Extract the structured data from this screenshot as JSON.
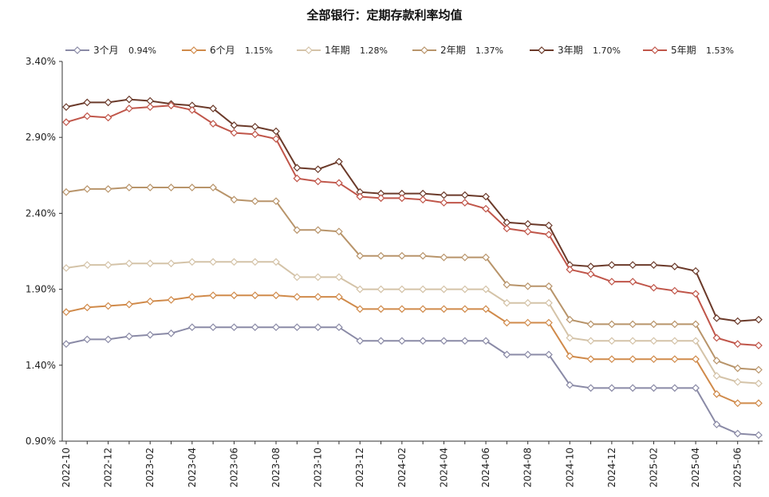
{
  "chart_data": {
    "type": "line",
    "title": "全部银行：定期存款利率均值",
    "xlabel": "",
    "ylabel": "",
    "ylim": [
      0.9,
      3.4
    ],
    "y_ticks": [
      "0.90%",
      "1.40%",
      "1.90%",
      "2.40%",
      "2.90%",
      "3.40%"
    ],
    "y_tick_values": [
      0.9,
      1.4,
      1.9,
      2.4,
      2.9,
      3.4
    ],
    "grid": false,
    "legend_position": "top",
    "x_tick_labels": [
      "2022-10",
      "2022-12",
      "2023-02",
      "2023-04",
      "2023-06",
      "2023-08",
      "2023-10",
      "2023-12",
      "2024-02",
      "2024-04",
      "2024-06",
      "2024-08",
      "2024-10",
      "2024-12",
      "2025-02",
      "2025-04",
      "2025-06"
    ],
    "categories": [
      "2022-10",
      "2022-11",
      "2022-12",
      "2023-01",
      "2023-02",
      "2023-03",
      "2023-04",
      "2023-05",
      "2023-06",
      "2023-07",
      "2023-08",
      "2023-09",
      "2023-10",
      "2023-11",
      "2023-12",
      "2024-01",
      "2024-02",
      "2024-03",
      "2024-04",
      "2024-05",
      "2024-06",
      "2024-07",
      "2024-08",
      "2024-09",
      "2024-10",
      "2024-11",
      "2024-12",
      "2025-01",
      "2025-02",
      "2025-03",
      "2025-04",
      "2025-05",
      "2025-06",
      "2025-07"
    ],
    "series": [
      {
        "name": "3个月",
        "latest": "0.94%",
        "color": "#8a8aa6",
        "values": [
          1.54,
          1.57,
          1.57,
          1.59,
          1.6,
          1.61,
          1.65,
          1.65,
          1.65,
          1.65,
          1.65,
          1.65,
          1.65,
          1.65,
          1.56,
          1.56,
          1.56,
          1.56,
          1.56,
          1.56,
          1.56,
          1.47,
          1.47,
          1.47,
          1.27,
          1.25,
          1.25,
          1.25,
          1.25,
          1.25,
          1.25,
          1.01,
          0.95,
          0.94
        ]
      },
      {
        "name": "6个月",
        "latest": "1.15%",
        "color": "#d08a4a",
        "values": [
          1.75,
          1.78,
          1.79,
          1.8,
          1.82,
          1.83,
          1.85,
          1.86,
          1.86,
          1.86,
          1.86,
          1.85,
          1.85,
          1.85,
          1.77,
          1.77,
          1.77,
          1.77,
          1.77,
          1.77,
          1.77,
          1.68,
          1.68,
          1.68,
          1.46,
          1.44,
          1.44,
          1.44,
          1.44,
          1.44,
          1.44,
          1.21,
          1.15,
          1.15
        ]
      },
      {
        "name": "1年期",
        "latest": "1.28%",
        "color": "#d4c3a8",
        "values": [
          2.04,
          2.06,
          2.06,
          2.07,
          2.07,
          2.07,
          2.08,
          2.08,
          2.08,
          2.08,
          2.08,
          1.98,
          1.98,
          1.98,
          1.9,
          1.9,
          1.9,
          1.9,
          1.9,
          1.9,
          1.9,
          1.81,
          1.81,
          1.81,
          1.58,
          1.56,
          1.56,
          1.56,
          1.56,
          1.56,
          1.56,
          1.33,
          1.29,
          1.28
        ]
      },
      {
        "name": "2年期",
        "latest": "1.37%",
        "color": "#b8946a",
        "values": [
          2.54,
          2.56,
          2.56,
          2.57,
          2.57,
          2.57,
          2.57,
          2.57,
          2.49,
          2.48,
          2.48,
          2.29,
          2.29,
          2.28,
          2.12,
          2.12,
          2.12,
          2.12,
          2.11,
          2.11,
          2.11,
          1.93,
          1.92,
          1.92,
          1.7,
          1.67,
          1.67,
          1.67,
          1.67,
          1.67,
          1.67,
          1.43,
          1.38,
          1.37
        ]
      },
      {
        "name": "3年期",
        "latest": "1.70%",
        "color": "#6b3a2a",
        "values": [
          3.1,
          3.13,
          3.13,
          3.15,
          3.14,
          3.12,
          3.11,
          3.09,
          2.98,
          2.97,
          2.94,
          2.7,
          2.69,
          2.74,
          2.54,
          2.53,
          2.53,
          2.53,
          2.52,
          2.52,
          2.51,
          2.34,
          2.33,
          2.32,
          2.06,
          2.05,
          2.06,
          2.06,
          2.06,
          2.05,
          2.02,
          1.71,
          1.69,
          1.7
        ]
      },
      {
        "name": "5年期",
        "latest": "1.53%",
        "color": "#c0564a",
        "values": [
          3.0,
          3.04,
          3.03,
          3.09,
          3.1,
          3.11,
          3.08,
          2.99,
          2.93,
          2.92,
          2.89,
          2.63,
          2.61,
          2.6,
          2.51,
          2.5,
          2.5,
          2.49,
          2.47,
          2.47,
          2.43,
          2.3,
          2.28,
          2.26,
          2.03,
          2.0,
          1.95,
          1.95,
          1.91,
          1.89,
          1.87,
          1.58,
          1.54,
          1.53
        ]
      }
    ]
  }
}
